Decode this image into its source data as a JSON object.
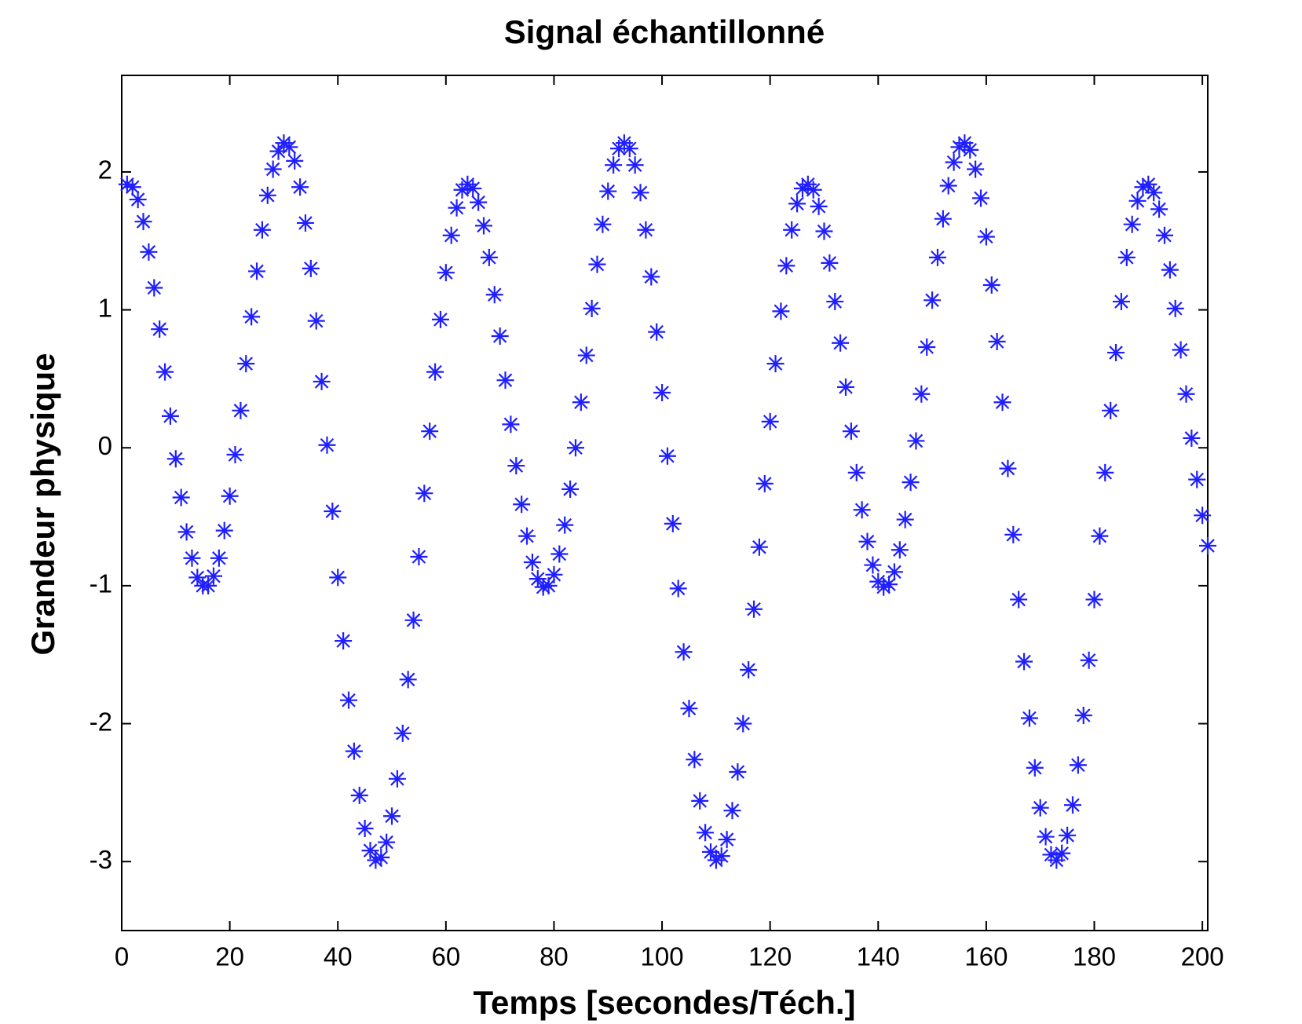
{
  "chart_data": {
    "type": "scatter",
    "title": "Signal échantillonné",
    "x_label": "Temps [secondes/Téch.]",
    "y_label": "Grandeur physique",
    "color": "#1f1fff",
    "x": [
      1,
      2,
      3,
      4,
      5,
      6,
      7,
      8,
      9,
      10,
      11,
      12,
      13,
      14,
      15,
      16,
      17,
      18,
      19,
      20,
      21,
      22,
      23,
      24,
      25,
      26,
      27,
      28,
      29,
      30,
      31,
      32,
      33,
      34,
      35,
      36,
      37,
      38,
      39,
      40,
      41,
      42,
      43,
      44,
      45,
      46,
      47,
      48,
      49,
      50,
      51,
      52,
      53,
      54,
      55,
      56,
      57,
      58,
      59,
      60,
      61,
      62,
      63,
      64,
      65,
      66,
      67,
      68,
      69,
      70,
      71,
      72,
      73,
      74,
      75,
      76,
      77,
      78,
      79,
      80,
      81,
      82,
      83,
      84,
      85,
      86,
      87,
      88,
      89,
      90,
      91,
      92,
      93,
      94,
      95,
      96,
      97,
      98,
      99,
      100,
      101,
      102,
      103,
      104,
      105,
      106,
      107,
      108,
      109,
      110,
      111,
      112,
      113,
      114,
      115,
      116,
      117,
      118,
      119,
      120,
      121,
      122,
      123,
      124,
      125,
      126,
      127,
      128,
      129,
      130,
      131,
      132,
      133,
      134,
      135,
      136,
      137,
      138,
      139,
      140,
      141,
      142,
      143,
      144,
      145,
      146,
      147,
      148,
      149,
      150,
      151,
      152,
      153,
      154,
      155,
      156,
      157,
      158,
      159,
      160,
      161,
      162,
      163,
      164,
      165,
      166,
      167,
      168,
      169,
      170,
      171,
      172,
      173,
      174,
      175,
      176,
      177,
      178,
      179,
      180,
      181,
      182,
      183,
      184,
      185,
      186,
      187,
      188,
      189,
      190,
      191,
      192,
      193,
      194,
      195,
      196,
      197,
      198,
      199,
      200,
      201
    ],
    "values": [
      1.91,
      1.89,
      1.8,
      1.64,
      1.42,
      1.16,
      0.86,
      0.55,
      0.23,
      -0.08,
      -0.36,
      -0.61,
      -0.8,
      -0.94,
      -1.0,
      -1.0,
      -0.93,
      -0.8,
      -0.6,
      -0.35,
      -0.05,
      0.27,
      0.61,
      0.95,
      1.28,
      1.58,
      1.83,
      2.02,
      2.15,
      2.21,
      2.18,
      2.08,
      1.89,
      1.63,
      1.3,
      0.92,
      0.48,
      0.02,
      -0.46,
      -0.94,
      -1.4,
      -1.83,
      -2.2,
      -2.52,
      -2.76,
      -2.92,
      -2.99,
      -2.97,
      -2.86,
      -2.67,
      -2.4,
      -2.07,
      -1.68,
      -1.25,
      -0.79,
      -0.33,
      0.12,
      0.55,
      0.93,
      1.27,
      1.54,
      1.74,
      1.87,
      1.91,
      1.88,
      1.78,
      1.61,
      1.38,
      1.11,
      0.81,
      0.49,
      0.17,
      -0.13,
      -0.41,
      -0.64,
      -0.83,
      -0.95,
      -1.01,
      -1.0,
      -0.92,
      -0.77,
      -0.56,
      -0.3,
      0,
      0.33,
      0.67,
      1.01,
      1.33,
      1.62,
      1.86,
      2.05,
      2.17,
      2.21,
      2.17,
      2.05,
      1.85,
      1.58,
      1.24,
      0.84,
      0.4,
      -0.06,
      -0.55,
      -1.02,
      -1.48,
      -1.89,
      -2.26,
      -2.56,
      -2.79,
      -2.93,
      -2.99,
      -2.96,
      -2.84,
      -2.63,
      -2.35,
      -2.0,
      -1.61,
      -1.17,
      -0.72,
      -0.26,
      0.19,
      0.61,
      0.99,
      1.32,
      1.58,
      1.77,
      1.88,
      1.91,
      1.87,
      1.75,
      1.57,
      1.34,
      1.06,
      0.76,
      0.44,
      0.12,
      -0.18,
      -0.45,
      -0.68,
      -0.85,
      -0.97,
      -1.01,
      -0.99,
      -0.9,
      -0.74,
      -0.52,
      -0.25,
      0.05,
      0.39,
      0.73,
      1.07,
      1.38,
      1.66,
      1.9,
      2.07,
      2.18,
      2.21,
      2.16,
      2.02,
      1.81,
      1.53,
      1.18,
      0.77,
      0.33,
      -0.15,
      -0.63,
      -1.1,
      -1.55,
      -1.96,
      -2.32,
      -2.61,
      -2.82,
      -2.95,
      -2.99,
      -2.94,
      -2.81,
      -2.59,
      -2.3,
      -1.94,
      -1.54,
      -1.1,
      -0.64,
      -0.18,
      0.27,
      0.69,
      1.06,
      1.38,
      1.62,
      1.79,
      1.89,
      1.91,
      1.85,
      1.73,
      1.54,
      1.29,
      1.01,
      0.71,
      0.39,
      0.07,
      -0.23,
      -0.49,
      -0.71
    ],
    "xlim": [
      0,
      201
    ],
    "ylim": [
      -3.5,
      2.7
    ],
    "xticks": [
      0,
      20,
      40,
      60,
      80,
      100,
      120,
      140,
      160,
      180,
      200
    ],
    "yticks": [
      -3,
      -2,
      -1,
      0,
      1,
      2
    ]
  }
}
